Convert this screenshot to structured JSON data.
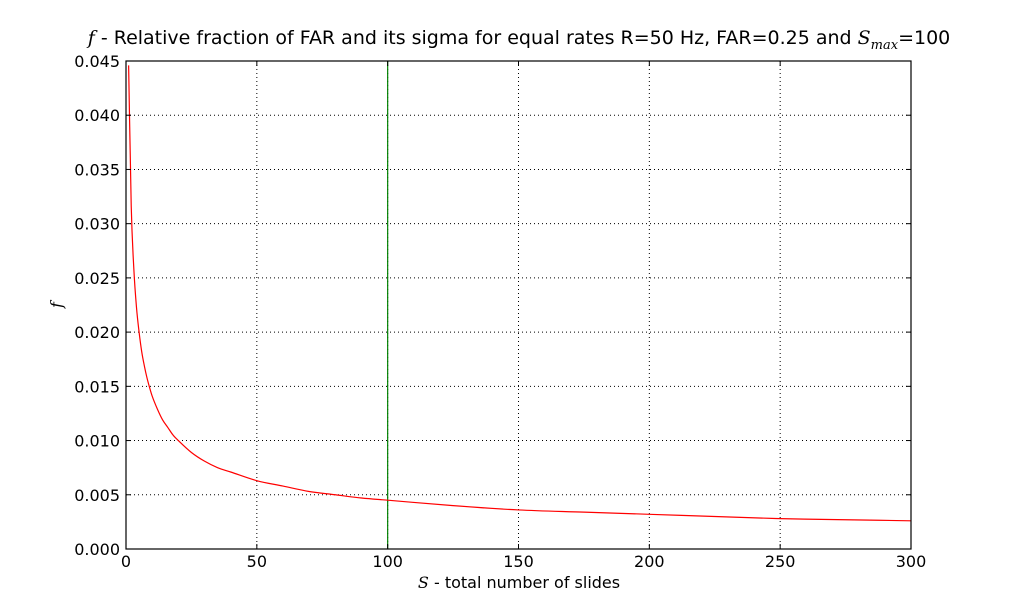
{
  "chart_data": {
    "type": "line",
    "title": {
      "symbol": "f",
      "text": " - Relative fraction of FAR and its sigma for equal rates R=50 Hz, FAR=0.25 and ",
      "smax_base": "S",
      "smax_sub": "max",
      "smax_value": "=100"
    },
    "xlabel": {
      "symbol": "S",
      "text": " - total number of slides"
    },
    "ylabel": "f",
    "xlim": [
      0,
      300
    ],
    "ylim": [
      0,
      0.045
    ],
    "xticks": [
      0,
      50,
      100,
      150,
      200,
      250,
      300
    ],
    "xtick_labels": [
      "0",
      "50",
      "100",
      "150",
      "200",
      "250",
      "300"
    ],
    "yticks": [
      0,
      0.005,
      0.01,
      0.015,
      0.02,
      0.025,
      0.03,
      0.035,
      0.04,
      0.045
    ],
    "ytick_labels": [
      "0.000",
      "0.005",
      "0.010",
      "0.015",
      "0.020",
      "0.025",
      "0.030",
      "0.035",
      "0.040",
      "0.045"
    ],
    "grid": true,
    "series": [
      {
        "name": "f",
        "color": "#ff0000",
        "x": [
          1,
          2,
          3,
          4,
          5,
          6,
          7,
          8,
          9,
          10,
          12,
          14,
          16,
          18,
          20,
          25,
          30,
          35,
          40,
          50,
          60,
          70,
          80,
          90,
          100,
          125,
          150,
          175,
          200,
          225,
          250,
          275,
          300
        ],
        "values": [
          0.0446,
          0.0316,
          0.0258,
          0.0223,
          0.02,
          0.0182,
          0.0169,
          0.0158,
          0.0149,
          0.0141,
          0.0129,
          0.0119,
          0.0112,
          0.0105,
          0.01,
          0.0089,
          0.0081,
          0.0075,
          0.0071,
          0.0063,
          0.0058,
          0.0053,
          0.005,
          0.0047,
          0.0045,
          0.004,
          0.0036,
          0.0034,
          0.0032,
          0.003,
          0.0028,
          0.0027,
          0.0026
        ]
      }
    ],
    "vertical_line": {
      "x": 100,
      "color": "#008000"
    },
    "colors": {
      "grid": "#000000",
      "axes": "#000000",
      "background": "#ffffff"
    }
  }
}
